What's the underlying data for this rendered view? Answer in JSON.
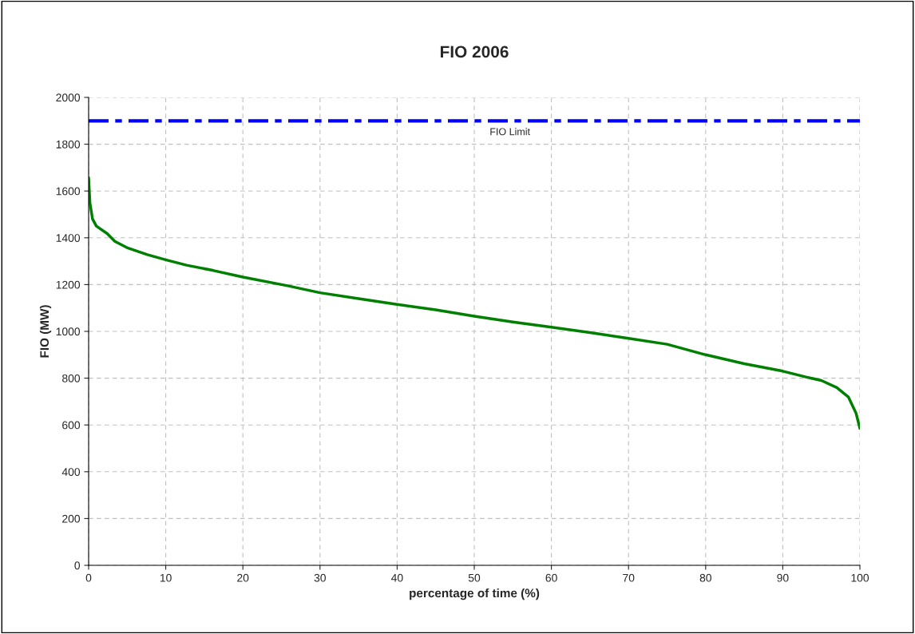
{
  "chart_data": {
    "type": "line",
    "title": "FIO 2006",
    "xlabel": "percentage of time (%)",
    "ylabel": "FIO (MW)",
    "xlim": [
      0,
      100
    ],
    "xticks": [
      0,
      10,
      20,
      30,
      40,
      50,
      60,
      70,
      80,
      90,
      100
    ],
    "ylim": [
      0,
      2000
    ],
    "yticks": [
      0,
      200,
      400,
      600,
      800,
      1000,
      1200,
      1400,
      1600,
      1800,
      2000
    ],
    "grid": true,
    "legend": false,
    "marker": "none",
    "series": [
      {
        "color": "#008000",
        "line_style": "solid",
        "x": [
          0,
          0.17,
          0.5,
          1.0,
          2.4,
          3.4,
          5.1,
          7.6,
          10,
          12.7,
          16.2,
          20,
          25.8,
          30,
          35,
          40,
          45,
          50,
          55,
          60,
          65,
          70,
          75,
          80,
          85,
          90,
          93,
          95,
          97,
          98.5,
          99.5,
          100
        ],
        "values": [
          1657,
          1549,
          1481,
          1450,
          1418,
          1385,
          1356,
          1328,
          1306,
          1283,
          1260,
          1232,
          1195,
          1165,
          1140,
          1115,
          1092,
          1065,
          1040,
          1018,
          995,
          970,
          945,
          900,
          862,
          830,
          805,
          790,
          760,
          720,
          650,
          585
        ]
      }
    ],
    "ref_lines": [
      {
        "axis": "y",
        "value": 1900,
        "label": "FIO Limit",
        "color": "#0000ff",
        "line_style": "dashdot"
      }
    ]
  }
}
